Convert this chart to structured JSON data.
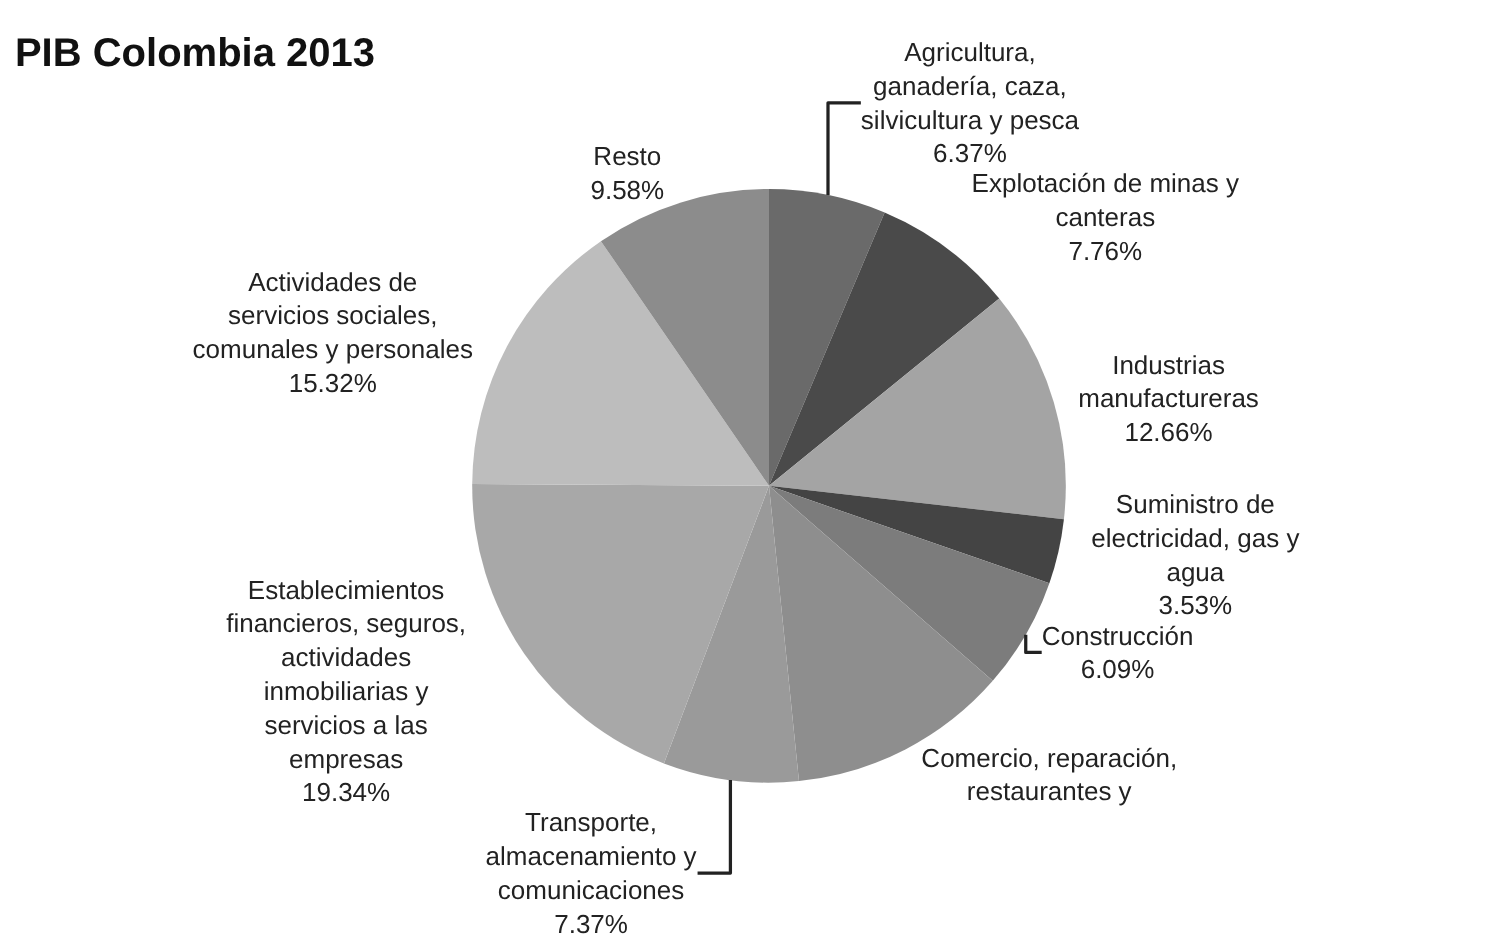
{
  "chart_data": {
    "type": "pie",
    "title": "PIB Colombia 2013",
    "categories": [
      "Agricultura, ganadería, caza, silvicultura y pesca",
      "Explotación de minas y canteras",
      "Industrias manufactureras",
      "Suministro de electricidad, gas y agua",
      "Construcción",
      "Comercio, reparación, restaurantes y",
      "Transporte, almacenamiento y comunicaciones",
      "Establecimientos financieros, seguros, actividades inmobiliarias y servicios a las empresas",
      "Actividades de servicios sociales, comunales y personales",
      "Resto"
    ],
    "values": [
      6.37,
      7.76,
      12.66,
      3.53,
      6.09,
      11.98,
      7.37,
      19.34,
      15.32,
      9.58
    ],
    "value_labels": [
      "6.37%",
      "7.76%",
      "12.66%",
      "3.53%",
      "6.09%",
      null,
      "7.37%",
      "19.34%",
      "15.32%",
      "9.58%"
    ],
    "colors": [
      "#6a6a6a",
      "#4a4a4a",
      "#a4a4a4",
      "#444444",
      "#7c7c7c",
      "#8e8e8e",
      "#9a9a9a",
      "#a8a8a8",
      "#bdbdbd",
      "#8c8c8c"
    ],
    "legend": false
  }
}
